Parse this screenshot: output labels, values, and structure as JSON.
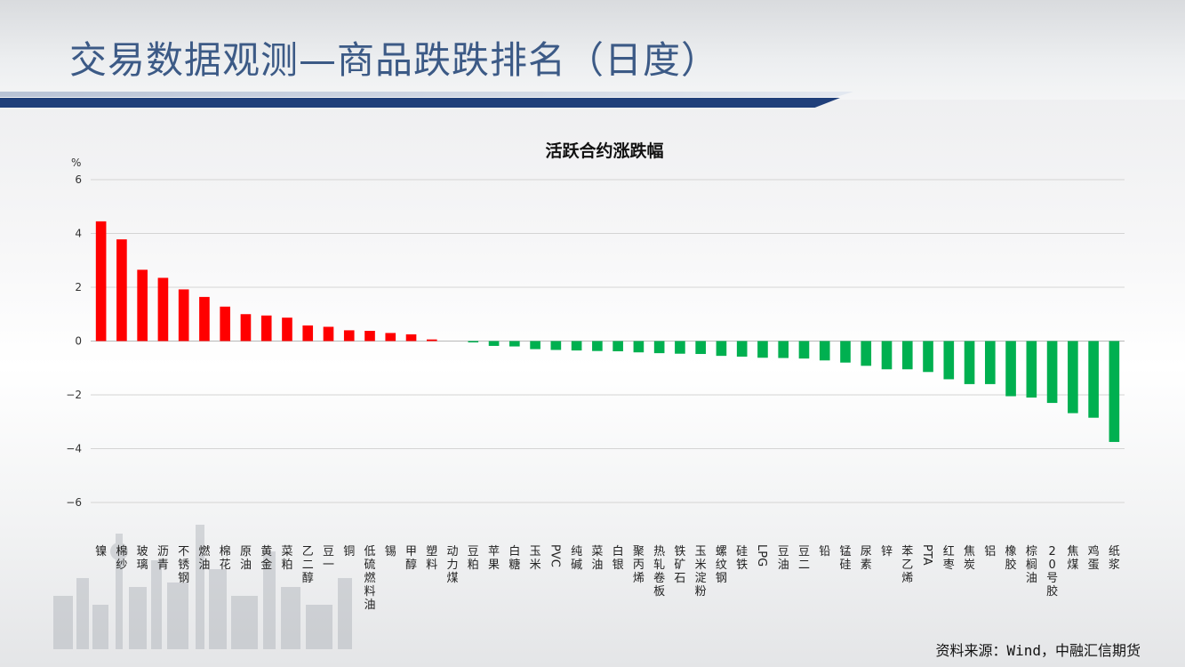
{
  "page": {
    "title": "交易数据观测—商品跌跌排名（日度）",
    "source": "资料来源：Wind，中融汇信期货"
  },
  "colors": {
    "title": "#3c5a86",
    "rule": "#1f3f7a",
    "up": "#ff0000",
    "down": "#00b050"
  },
  "chart_data": {
    "type": "bar",
    "title": "活跃合约涨跌幅",
    "ylabel": "%",
    "xlabel": "",
    "ylim": [
      -6,
      6
    ],
    "yticks": [
      6,
      4,
      2,
      0,
      -2,
      -4,
      -6
    ],
    "grid": true,
    "legend": "none",
    "categories": [
      "镍",
      "棉纱",
      "玻璃",
      "沥青",
      "不锈钢",
      "燃油",
      "棉花",
      "原油",
      "黄金",
      "菜粕",
      "乙二醇",
      "豆一",
      "铜",
      "低硫燃料油",
      "锡",
      "甲醇",
      "塑料",
      "动力煤",
      "豆粕",
      "苹果",
      "白糖",
      "玉米",
      "PVC",
      "纯碱",
      "菜油",
      "白银",
      "聚丙烯",
      "热轧卷板",
      "铁矿石",
      "玉米淀粉",
      "螺纹钢",
      "硅铁",
      "LPG",
      "豆油",
      "豆二",
      "铅",
      "锰硅",
      "尿素",
      "锌",
      "苯乙烯",
      "PTA",
      "红枣",
      "焦炭",
      "铝",
      "橡胶",
      "棕榈油",
      "20号胶",
      "焦煤",
      "鸡蛋",
      "纸浆"
    ],
    "values": [
      4.45,
      3.78,
      2.65,
      2.35,
      1.92,
      1.64,
      1.28,
      1.0,
      0.95,
      0.87,
      0.58,
      0.53,
      0.4,
      0.38,
      0.3,
      0.25,
      0.06,
      0.0,
      -0.05,
      -0.18,
      -0.2,
      -0.3,
      -0.33,
      -0.35,
      -0.37,
      -0.38,
      -0.42,
      -0.45,
      -0.47,
      -0.48,
      -0.55,
      -0.58,
      -0.62,
      -0.63,
      -0.65,
      -0.72,
      -0.8,
      -0.92,
      -1.05,
      -1.05,
      -1.15,
      -1.42,
      -1.6,
      -1.6,
      -2.05,
      -2.1,
      -2.3,
      -2.68,
      -2.85,
      -3.75
    ]
  }
}
